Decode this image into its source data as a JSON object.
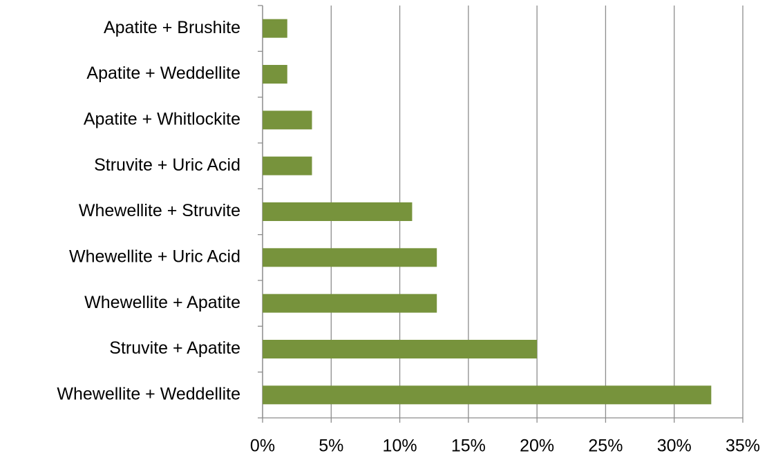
{
  "chart_data": {
    "type": "bar",
    "orientation": "horizontal",
    "categories": [
      "Apatite + Brushite",
      "Apatite + Weddellite",
      "Apatite + Whitlockite",
      "Struvite + Uric Acid",
      "Whewellite + Struvite",
      "Whewellite + Uric Acid",
      "Whewellite + Apatite",
      "Struvite + Apatite",
      "Whewellite + Weddellite"
    ],
    "values": [
      1.8,
      1.8,
      3.6,
      3.6,
      10.9,
      12.7,
      12.7,
      20.0,
      32.7
    ],
    "color": "#77933c",
    "xlim": [
      0,
      35
    ],
    "xticks": [
      {
        "value": 0,
        "label": "0%"
      },
      {
        "value": 5,
        "label": "5%"
      },
      {
        "value": 10,
        "label": "10%"
      },
      {
        "value": 15,
        "label": "15%"
      },
      {
        "value": 20,
        "label": "20%"
      },
      {
        "value": 25,
        "label": "25%"
      },
      {
        "value": 30,
        "label": "30%"
      },
      {
        "value": 35,
        "label": "35%"
      }
    ],
    "grid": true
  }
}
